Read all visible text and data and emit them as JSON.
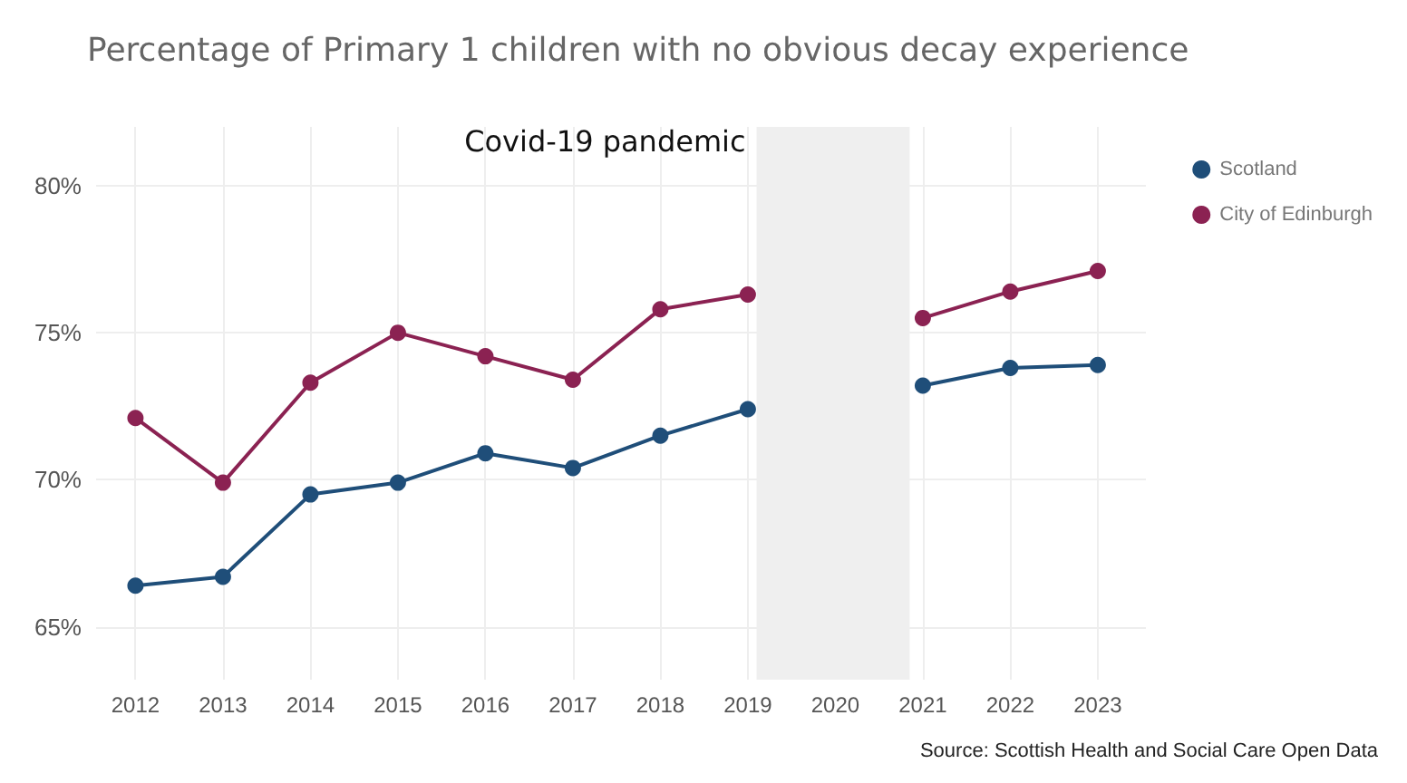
{
  "chart_data": {
    "type": "line",
    "title": "Percentage of Primary 1 children with no obvious decay experience",
    "x": [
      2012,
      2013,
      2014,
      2015,
      2016,
      2017,
      2018,
      2019,
      2020,
      2021,
      2022,
      2023
    ],
    "series": [
      {
        "name": "Scotland",
        "color": "#1f4e79",
        "values": [
          66.4,
          66.7,
          69.5,
          69.9,
          70.9,
          70.4,
          71.5,
          72.4,
          null,
          73.2,
          73.8,
          73.9
        ]
      },
      {
        "name": "City of Edinburgh",
        "color": "#8b2252",
        "values": [
          72.1,
          69.9,
          73.3,
          75.0,
          74.2,
          73.4,
          75.8,
          76.3,
          null,
          75.5,
          76.4,
          77.1
        ]
      }
    ],
    "xlim": [
      2011.55,
      2023.55
    ],
    "xticks": [
      2012,
      2013,
      2014,
      2015,
      2016,
      2017,
      2018,
      2019,
      2020,
      2021,
      2022,
      2023
    ],
    "ylim": [
      63.2,
      82
    ],
    "yticks": [
      {
        "value": 65,
        "label": "65%"
      },
      {
        "value": 70,
        "label": "70%"
      },
      {
        "value": 75,
        "label": "75%"
      },
      {
        "value": 80,
        "label": "80%"
      }
    ],
    "bands": [
      {
        "axis": "x",
        "from": 2019.1,
        "to": 2020.85,
        "label": "Covid-19 pandemic",
        "color": "#efefef"
      }
    ],
    "annotations": [
      "Source: Scottish Health and Social Care Open Data"
    ],
    "grid": true,
    "legend": "top right",
    "marker": "circle",
    "line_style": "solid"
  }
}
